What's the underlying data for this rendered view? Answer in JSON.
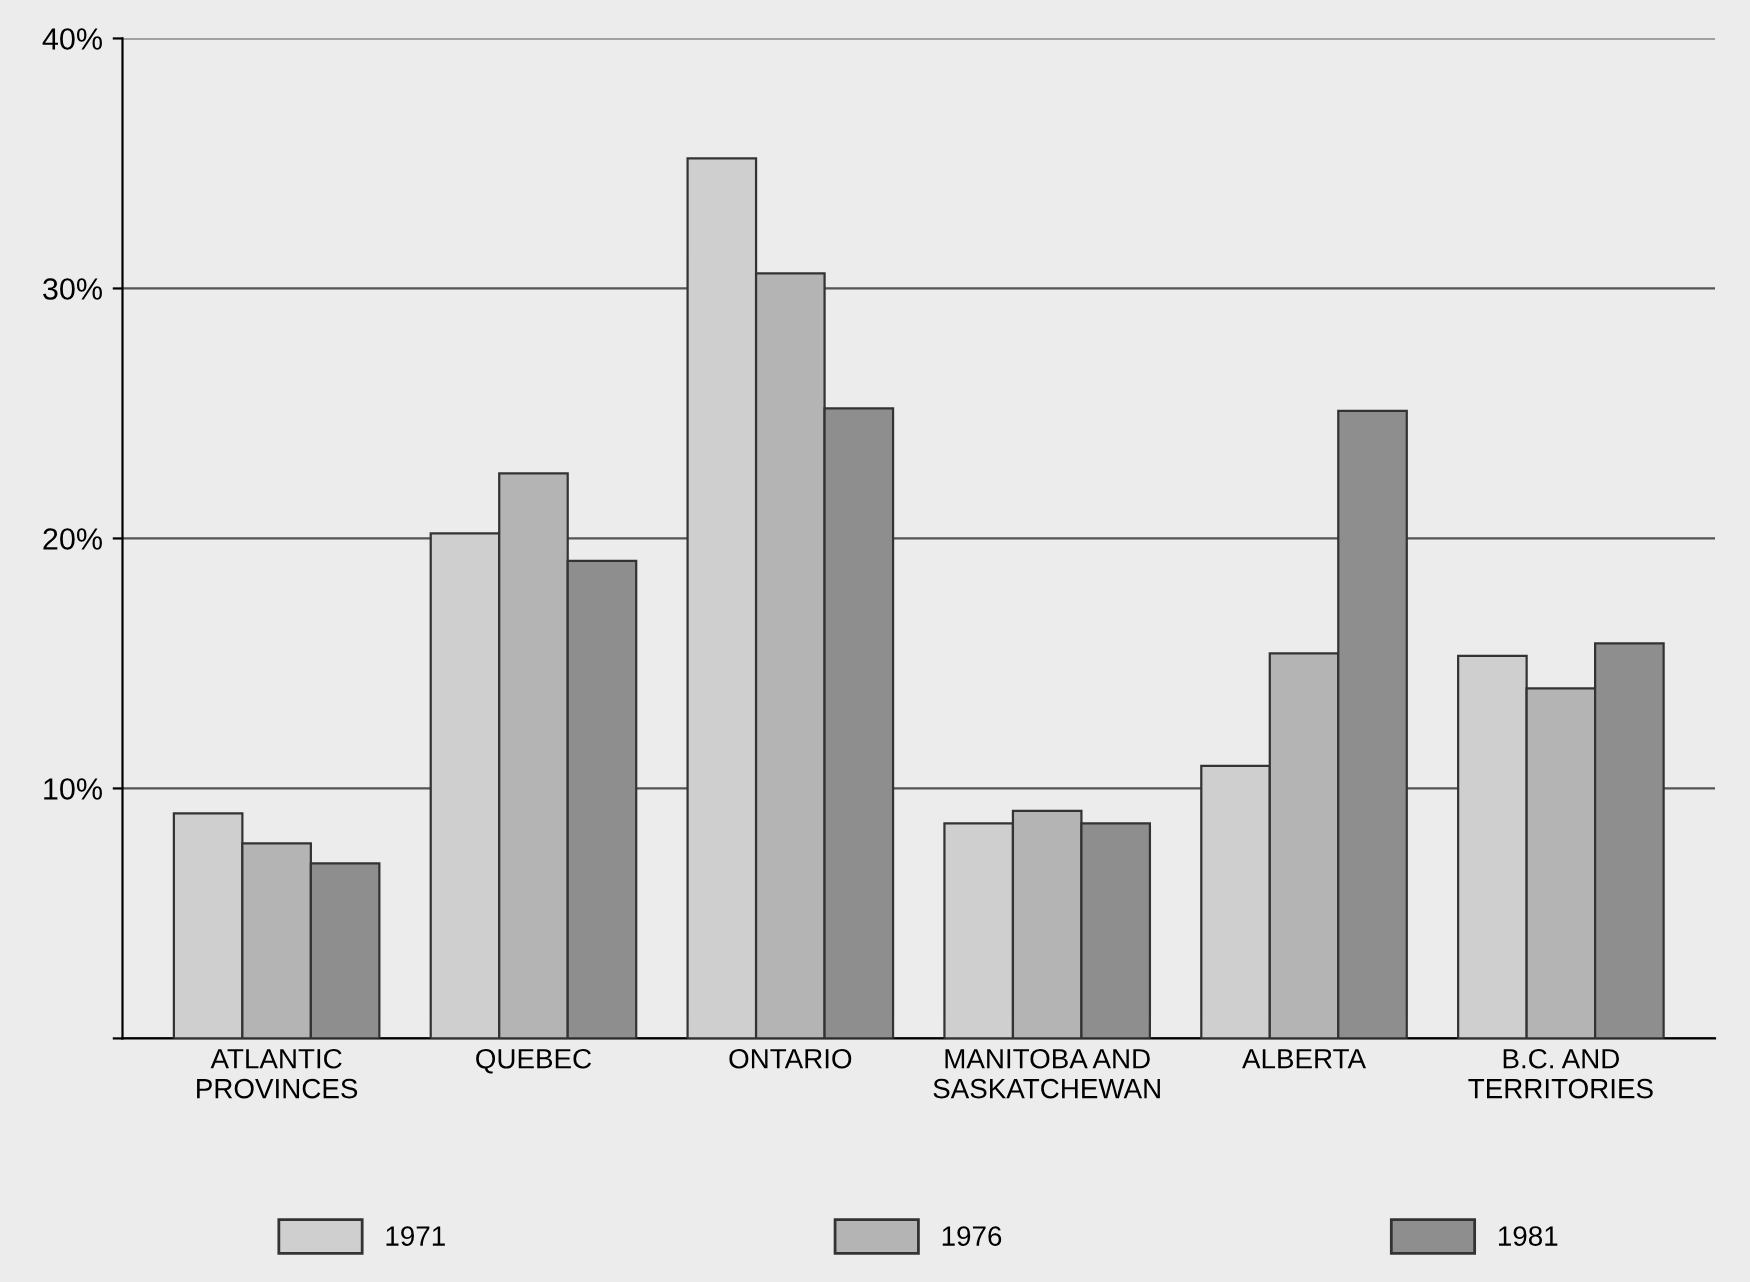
{
  "chart_data": {
    "type": "bar",
    "categories": [
      "ATLANTIC\nPROVINCES",
      "QUEBEC",
      "ONTARIO",
      "MANITOBA AND\nSASKATCHEWAN",
      "ALBERTA",
      "B.C. AND\nTERRITORIES"
    ],
    "series": [
      {
        "name": "1971",
        "color": "#cfcfcf",
        "values": [
          9.0,
          20.2,
          35.2,
          8.6,
          10.9,
          15.3
        ]
      },
      {
        "name": "1976",
        "color": "#b4b4b4",
        "values": [
          7.8,
          22.6,
          30.6,
          9.1,
          15.4,
          14.0
        ]
      },
      {
        "name": "1981",
        "color": "#8e8e8e",
        "values": [
          7.0,
          19.1,
          25.2,
          8.6,
          25.1,
          15.8
        ]
      }
    ],
    "ylim": [
      0,
      40
    ],
    "yticks": [
      {
        "value": 0,
        "label": null
      },
      {
        "value": 10,
        "label": "10%"
      },
      {
        "value": 20,
        "label": "20%"
      },
      {
        "value": 30,
        "label": "30%"
      },
      {
        "value": 40,
        "label": "40%"
      }
    ],
    "grid": "y",
    "legend": "bottom"
  }
}
